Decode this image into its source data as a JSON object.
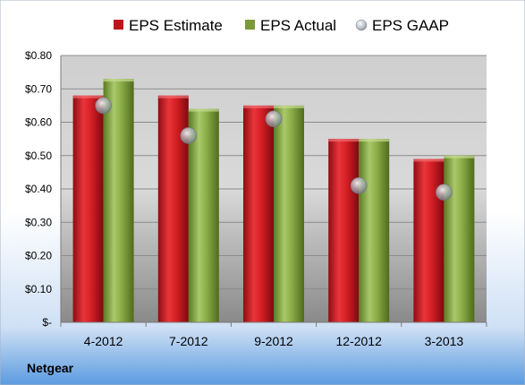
{
  "company": "Netgear",
  "chart_data": {
    "type": "bar",
    "categories": [
      "4-2012",
      "7-2012",
      "9-2012",
      "12-2012",
      "3-2013"
    ],
    "series": [
      {
        "name": "EPS Estimate",
        "kind": "bar",
        "color": "#c0141b",
        "values": [
          0.68,
          0.68,
          0.65,
          0.55,
          0.49
        ]
      },
      {
        "name": "EPS Actual",
        "kind": "bar",
        "color": "#7a9a3a",
        "values": [
          0.73,
          0.64,
          0.65,
          0.55,
          0.5
        ]
      },
      {
        "name": "EPS GAAP",
        "kind": "marker",
        "color": "#9aa3ad",
        "values": [
          0.65,
          0.56,
          0.61,
          0.41,
          0.39
        ]
      }
    ],
    "ylim": [
      0,
      0.8
    ],
    "yticks": [
      0,
      0.1,
      0.2,
      0.3,
      0.4,
      0.5,
      0.6,
      0.7,
      0.8
    ],
    "ytick_labels": [
      "$-",
      "$0.10",
      "$0.20",
      "$0.30",
      "$0.40",
      "$0.50",
      "$0.60",
      "$0.70",
      "$0.80"
    ],
    "grid": true,
    "legend": "top"
  },
  "colors": {
    "background_top": "#ffffff",
    "background_bottom": "#5b9be0",
    "plot_top": "#ffffff",
    "plot_bottom": "#7d7d7d"
  }
}
